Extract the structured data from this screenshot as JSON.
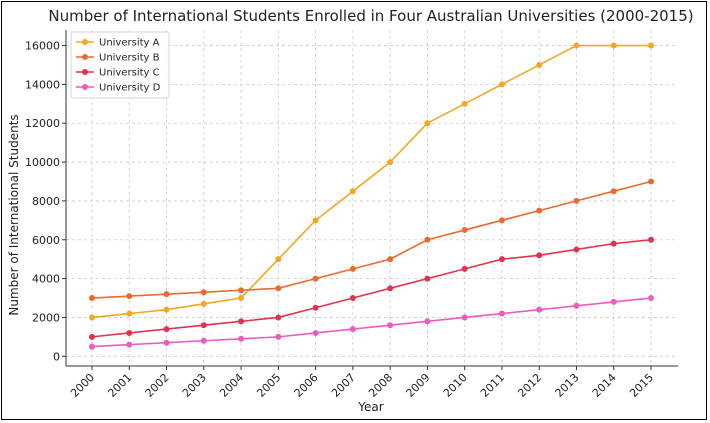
{
  "chart_data": {
    "type": "line",
    "title": "Number of International Students Enrolled in Four Australian Universities (2000-2015)",
    "xlabel": "Year",
    "ylabel": "Number of International Students",
    "x": [
      2000,
      2001,
      2002,
      2003,
      2004,
      2005,
      2006,
      2007,
      2008,
      2009,
      2010,
      2011,
      2012,
      2013,
      2014,
      2015
    ],
    "ylim": [
      -500,
      16800
    ],
    "yticks": [
      0,
      2000,
      4000,
      6000,
      8000,
      10000,
      12000,
      14000,
      16000
    ],
    "grid": true,
    "legend_position": "top-left",
    "series": [
      {
        "name": "University A",
        "color": "#F5A623",
        "values": [
          2000,
          2200,
          2400,
          2700,
          3000,
          5000,
          7000,
          8500,
          10000,
          12000,
          13000,
          14000,
          15000,
          16000,
          16000,
          16000
        ]
      },
      {
        "name": "University B",
        "color": "#EE6A2C",
        "values": [
          3000,
          3100,
          3200,
          3300,
          3400,
          3500,
          4000,
          4500,
          5000,
          6000,
          6500,
          7000,
          7500,
          8000,
          8500,
          9000
        ]
      },
      {
        "name": "University C",
        "color": "#E0344E",
        "values": [
          1000,
          1200,
          1400,
          1600,
          1800,
          2000,
          2500,
          3000,
          3500,
          4000,
          4500,
          5000,
          5200,
          5500,
          5800,
          6000
        ]
      },
      {
        "name": "University D",
        "color": "#EE5BBE",
        "values": [
          500,
          600,
          700,
          800,
          900,
          1000,
          1200,
          1400,
          1600,
          1800,
          2000,
          2200,
          2400,
          2600,
          2800,
          3000
        ]
      }
    ]
  }
}
